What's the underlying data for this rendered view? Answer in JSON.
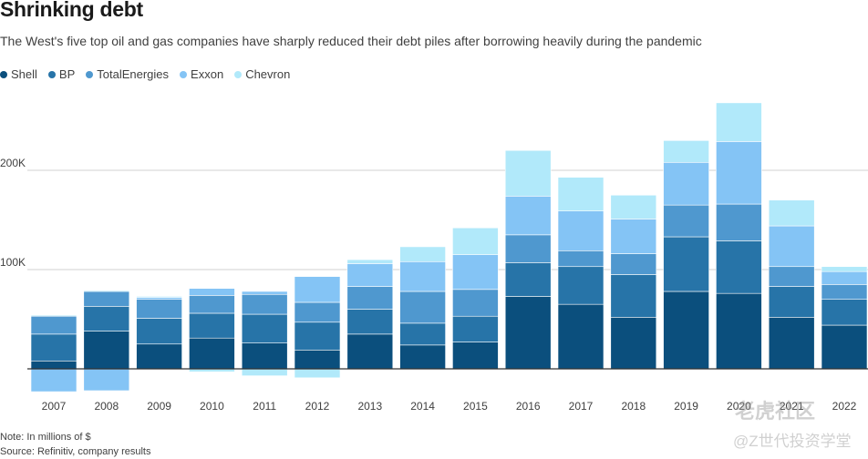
{
  "header": {
    "title": "Shrinking debt",
    "subtitle": "The West's five top oil and gas companies have sharply reduced their debt piles after borrowing heavily during the pandemic"
  },
  "footer": {
    "note": "Note: In millions of $",
    "source": "Source: Refinitiv, company results"
  },
  "watermark": {
    "line1": "老虎社区",
    "line2": "@Z世代投资学堂"
  },
  "colors": {
    "Shell": "#0b4f7d",
    "BP": "#2774a8",
    "TotalEnergies": "#4f98cf",
    "Exxon": "#84c4f5",
    "Chevron": "#b1e9fa",
    "gridline": "#d0d0d0",
    "zeroline": "#333333"
  },
  "chart_data": {
    "type": "bar",
    "stacked": true,
    "title": "Shrinking debt",
    "subtitle": "The West's five top oil and gas companies have sharply reduced their debt piles after borrowing heavily during the pandemic",
    "xlabel": "",
    "ylabel": "",
    "unit": "millions of $",
    "ylim": [
      -27000,
      275000
    ],
    "yticks": [
      0,
      100000,
      200000
    ],
    "ytick_labels": [
      "",
      "100K",
      "200K"
    ],
    "grid": true,
    "legend_position": "top-left",
    "categories": [
      "2007",
      "2008",
      "2009",
      "2010",
      "2011",
      "2012",
      "2013",
      "2014",
      "2015",
      "2016",
      "2017",
      "2018",
      "2019",
      "2020",
      "2021",
      "2022"
    ],
    "series": [
      {
        "name": "Shell",
        "values": [
          8000,
          38000,
          25000,
          31000,
          26000,
          19000,
          35000,
          24000,
          27000,
          73000,
          65000,
          52000,
          78000,
          76000,
          52000,
          44000
        ]
      },
      {
        "name": "BP",
        "values": [
          27000,
          25000,
          26000,
          25000,
          29000,
          28000,
          25000,
          22000,
          26000,
          34000,
          38000,
          43000,
          55000,
          53000,
          31000,
          26000
        ]
      },
      {
        "name": "TotalEnergies",
        "values": [
          18000,
          15000,
          19000,
          18000,
          20000,
          20000,
          23000,
          32000,
          27000,
          28000,
          16000,
          21000,
          32000,
          37000,
          20000,
          15000
        ]
      },
      {
        "name": "Exxon",
        "values": [
          -23000,
          -22000,
          2000,
          7000,
          3000,
          26000,
          23000,
          30000,
          35000,
          39000,
          40000,
          35000,
          43000,
          63000,
          41000,
          13000
        ]
      },
      {
        "name": "Chevron",
        "values": [
          1000,
          1000,
          1000,
          -3000,
          -7000,
          -9000,
          4000,
          15000,
          27000,
          46000,
          34000,
          24000,
          22000,
          39000,
          26000,
          5000
        ]
      }
    ]
  }
}
